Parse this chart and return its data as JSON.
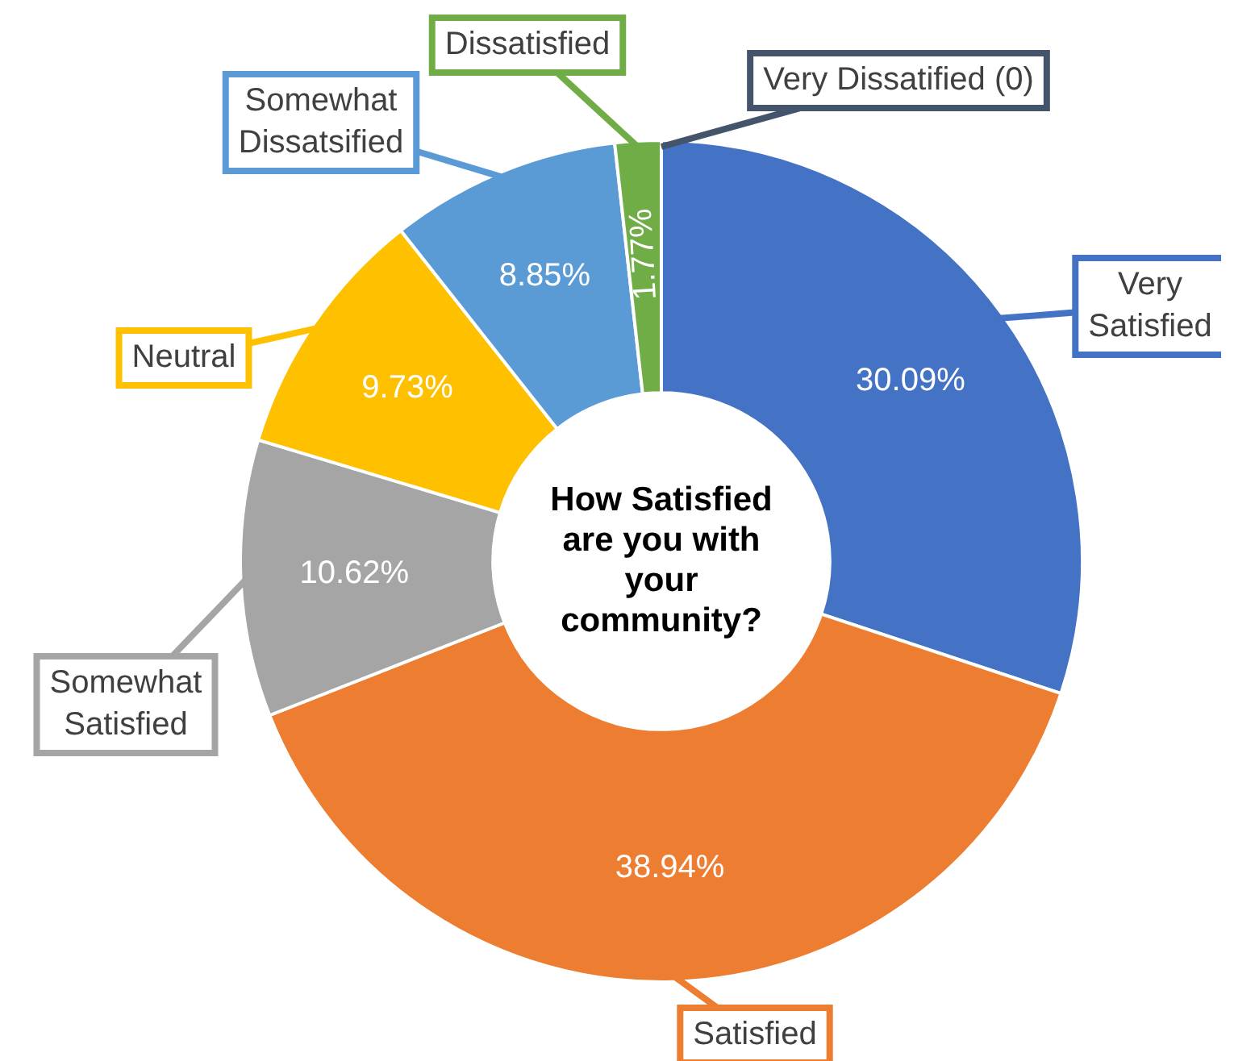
{
  "chart_data": {
    "type": "donut",
    "title": "How Satisfied are you with your community?",
    "categories": [
      "Very Satisfied",
      "Satisfied",
      "Somewhat Satisfied",
      "Neutral",
      "Somewhat Dissatsified",
      "Dissatisfied",
      "Very Dissatified (0)"
    ],
    "values": [
      30.09,
      38.94,
      10.62,
      9.73,
      8.85,
      1.77,
      0
    ],
    "colors": [
      "#4472c4",
      "#ed7d31",
      "#a5a5a5",
      "#ffc000",
      "#5b9bd5",
      "#70ad47",
      "#44546a"
    ],
    "value_labels": [
      "30.09%",
      "38.94%",
      "10.62%",
      "9.73%",
      "8.85%",
      "1.77%",
      null
    ]
  }
}
